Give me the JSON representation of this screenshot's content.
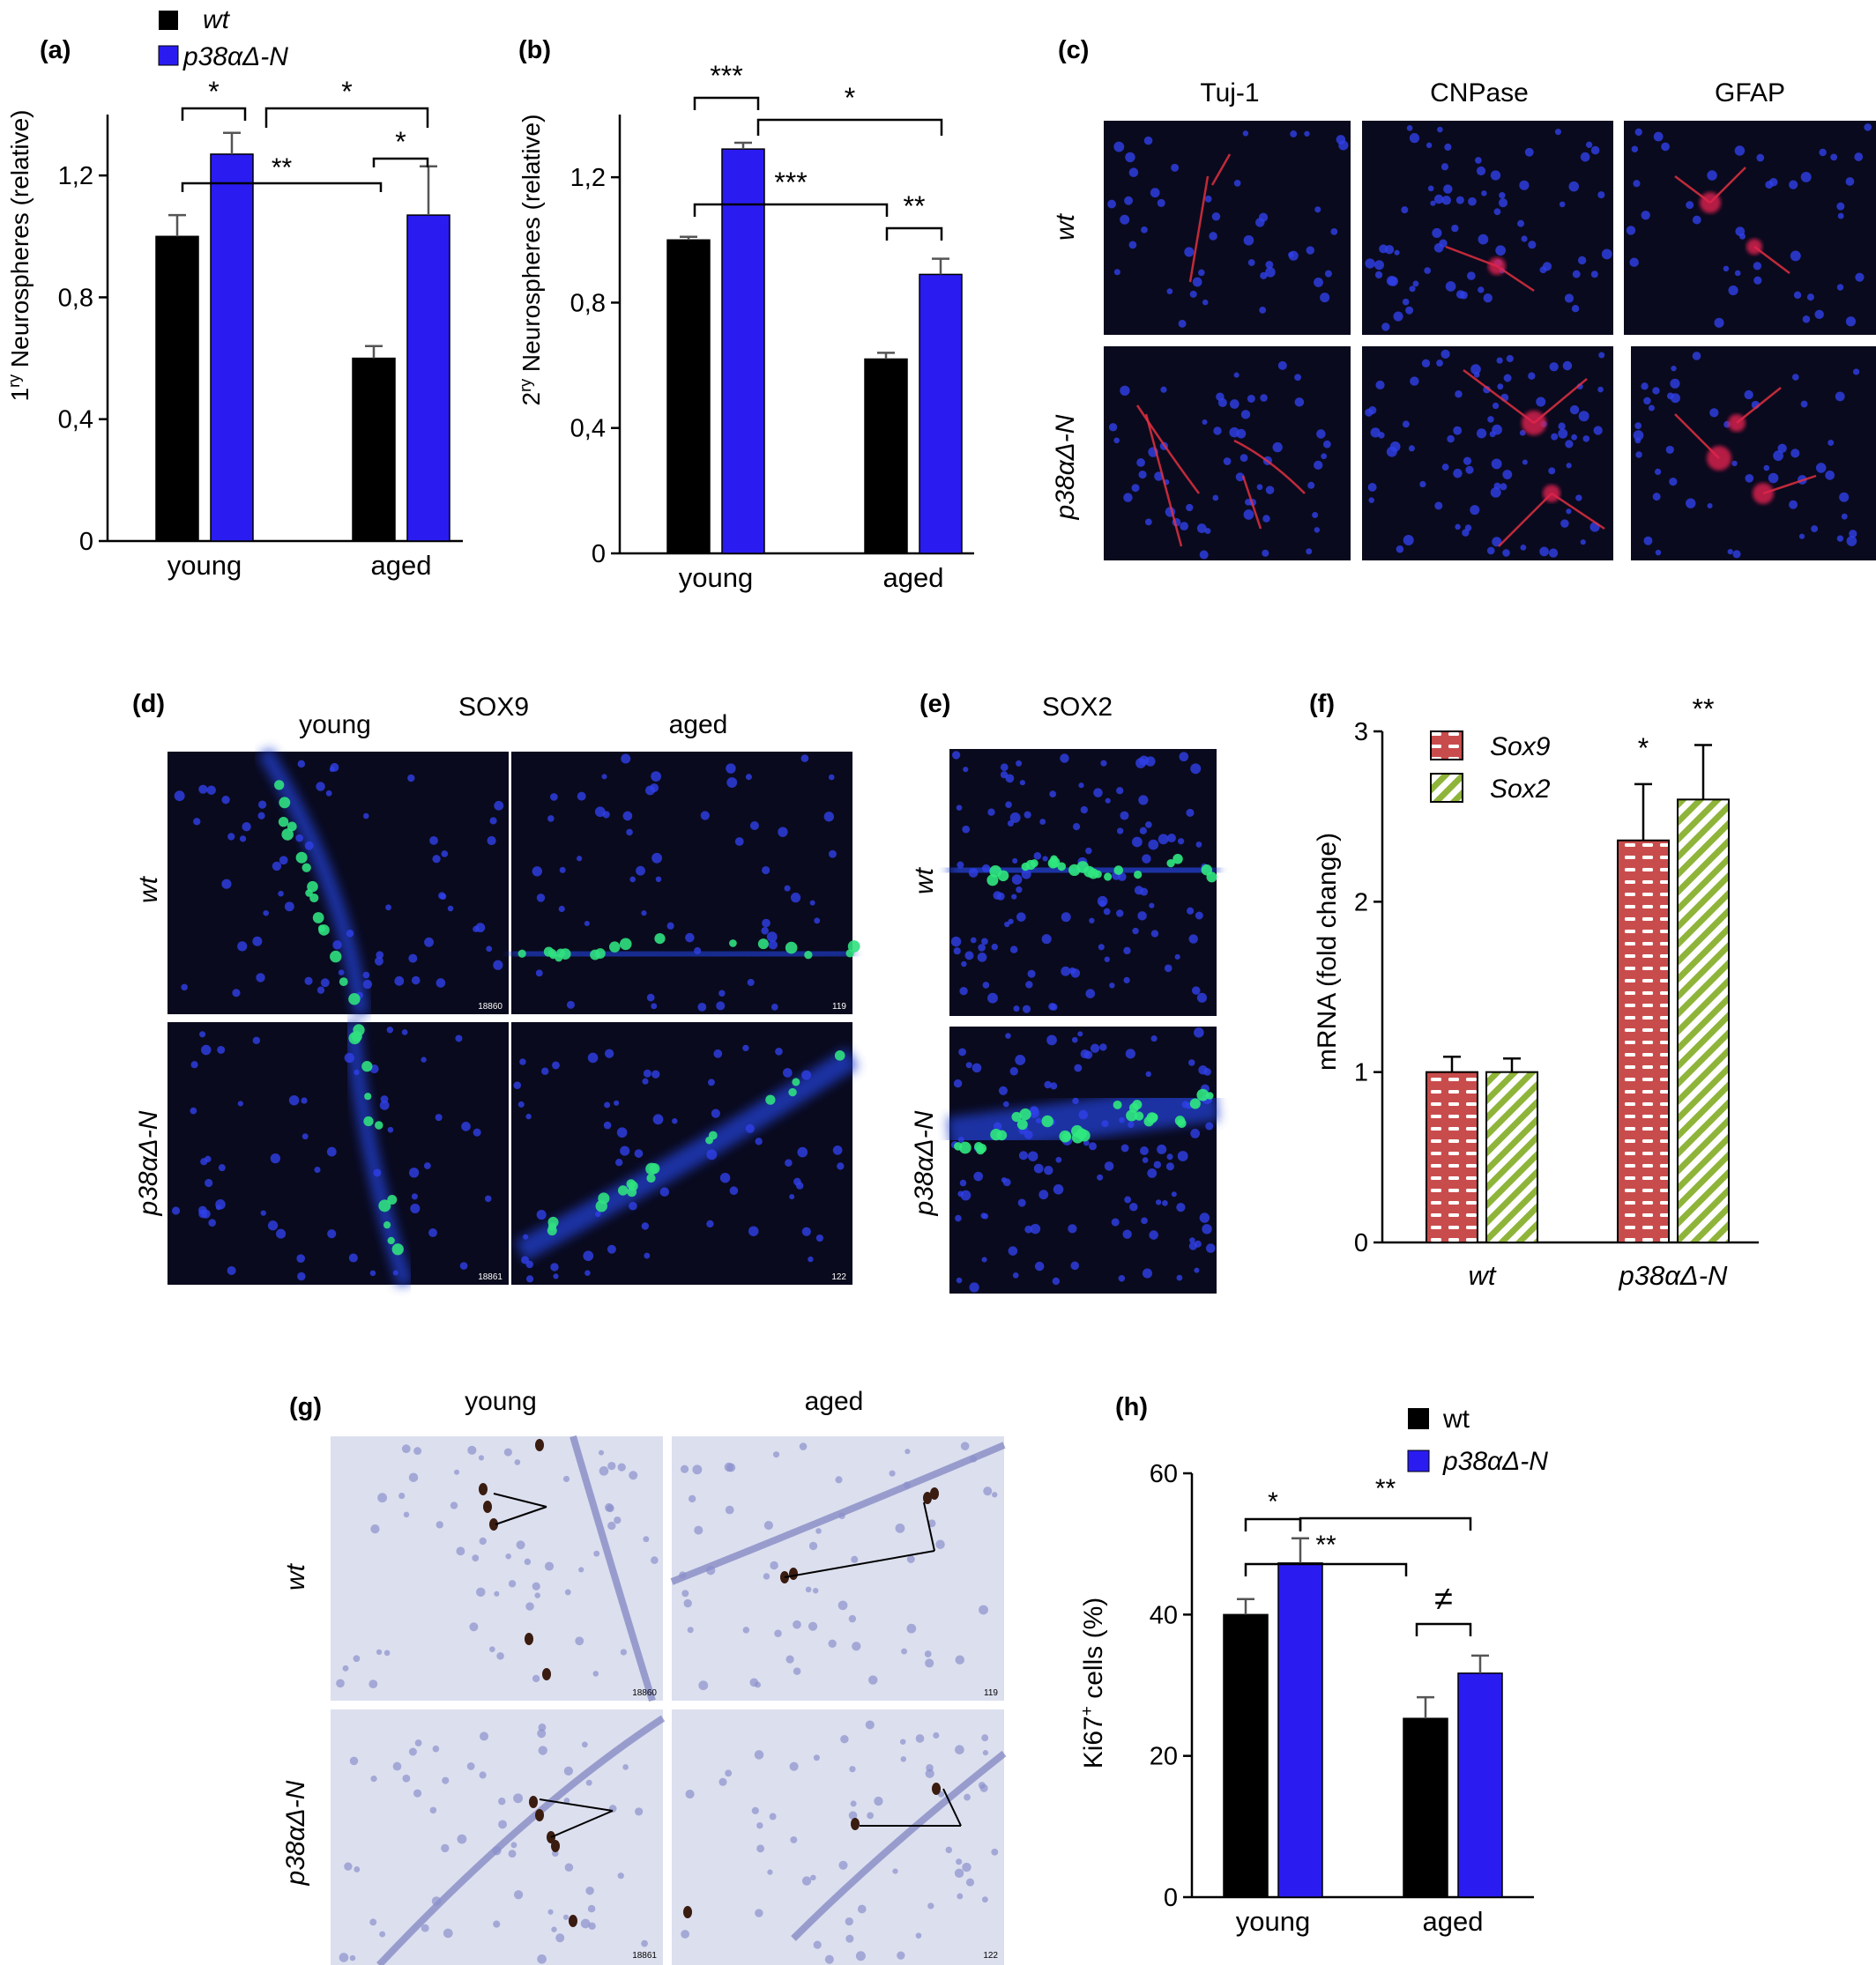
{
  "colors": {
    "wt": "#000000",
    "mut": "#2a1cf0",
    "sox9": "#c94c4c",
    "sox2": "#8fb43a",
    "micro_bg": "#0a0a1e",
    "he_bg": "#dcdfee"
  },
  "legend": {
    "wt": "wt",
    "mut": "p38αΔ-N",
    "wt_h": "wt"
  },
  "genotypes": {
    "wt": "wt",
    "mut": "p38αΔ-N"
  },
  "ages": {
    "young": "young",
    "aged": "aged"
  },
  "panel_a": {
    "label": "(a)",
    "ylabel_pre": "1",
    "ylabel_sup": "ry",
    "ylabel_post": " Neurospheres (relative)",
    "chart_data": {
      "type": "bar",
      "categories": [
        "young",
        "aged"
      ],
      "series": [
        {
          "name": "wt",
          "values": [
            1.0,
            0.6
          ],
          "errors": [
            0.07,
            0.04
          ]
        },
        {
          "name": "p38αΔ-N",
          "values": [
            1.27,
            1.07
          ],
          "errors": [
            0.07,
            0.16
          ]
        }
      ],
      "ylim": [
        0,
        1.4
      ],
      "yticks": [
        0,
        0.4,
        0.8,
        1.2
      ],
      "ytick_labels": [
        "0",
        "0,4",
        "0,8",
        "1,2"
      ],
      "significance": [
        {
          "text": "*",
          "between": "young wt – young p38αΔ-N"
        },
        {
          "text": "*",
          "between": "young p38αΔ-N – aged p38αΔ-N"
        },
        {
          "text": "**",
          "between": "young wt – aged wt"
        },
        {
          "text": "*",
          "between": "aged wt – aged p38αΔ-N"
        }
      ]
    }
  },
  "panel_b": {
    "label": "(b)",
    "ylabel_pre": "2",
    "ylabel_sup": "ry",
    "ylabel_post": " Neurospheres (relative)",
    "chart_data": {
      "type": "bar",
      "categories": [
        "young",
        "aged"
      ],
      "series": [
        {
          "name": "wt",
          "values": [
            1.0,
            0.62
          ],
          "errors": [
            0.01,
            0.02
          ]
        },
        {
          "name": "p38αΔ-N",
          "values": [
            1.29,
            0.89
          ],
          "errors": [
            0.02,
            0.05
          ]
        }
      ],
      "ylim": [
        0,
        1.4
      ],
      "yticks": [
        0,
        0.4,
        0.8,
        1.2
      ],
      "ytick_labels": [
        "0",
        "0,4",
        "0,8",
        "1,2"
      ],
      "significance": [
        {
          "text": "***",
          "between": "young wt – young p38αΔ-N"
        },
        {
          "text": "*",
          "between": "young p38αΔ-N – aged p38αΔ-N"
        },
        {
          "text": "***",
          "between": "young wt – aged wt"
        },
        {
          "text": "**",
          "between": "aged wt – aged p38αΔ-N"
        }
      ]
    }
  },
  "panel_c": {
    "label": "(c)",
    "columns": [
      "Tuj-1",
      "CNPase",
      "GFAP"
    ]
  },
  "panel_d": {
    "label": "(d)",
    "title": "SOX9",
    "ids": [
      "18860",
      "119",
      "18861",
      "122"
    ]
  },
  "panel_e": {
    "label": "(e)",
    "title": "SOX2"
  },
  "panel_f": {
    "label": "(f)",
    "ylabel": "mRNA (fold change)",
    "chart_data": {
      "type": "bar",
      "categories": [
        "wt",
        "p38αΔ-N"
      ],
      "series": [
        {
          "name": "Sox9",
          "values": [
            1.0,
            2.36
          ],
          "errors": [
            0.09,
            0.33
          ]
        },
        {
          "name": "Sox2",
          "values": [
            1.0,
            2.6
          ],
          "errors": [
            0.08,
            0.32
          ]
        }
      ],
      "ylim": [
        0,
        3
      ],
      "yticks": [
        0,
        1,
        2,
        3
      ],
      "ytick_labels": [
        "0",
        "1",
        "2",
        "3"
      ],
      "significance": [
        {
          "text": "*",
          "between": "p38αΔ-N Sox9 vs wt"
        },
        {
          "text": "**",
          "between": "p38αΔ-N Sox2 vs wt"
        }
      ]
    }
  },
  "panel_g": {
    "label": "(g)",
    "ids": [
      "18860",
      "119",
      "18861",
      "122"
    ]
  },
  "panel_h": {
    "label": "(h)",
    "ylabel_pre": "Ki67",
    "ylabel_sup": "+",
    "ylabel_post": " cells (%)",
    "chart_data": {
      "type": "bar",
      "categories": [
        "young",
        "aged"
      ],
      "series": [
        {
          "name": "wt",
          "values": [
            40,
            25.3
          ],
          "errors": [
            2.2,
            3.0
          ]
        },
        {
          "name": "p38αΔ-N",
          "values": [
            47.3,
            31.7
          ],
          "errors": [
            3.5,
            2.5
          ]
        }
      ],
      "ylim": [
        0,
        60
      ],
      "yticks": [
        0,
        20,
        40,
        60
      ],
      "ytick_labels": [
        "0",
        "20",
        "40",
        "60"
      ],
      "significance": [
        {
          "text": "*",
          "between": "young wt – young p38αΔ-N"
        },
        {
          "text": "**",
          "between": "young p38αΔ-N – aged p38αΔ-N"
        },
        {
          "text": "**",
          "between": "young wt – aged wt"
        },
        {
          "text": "≠",
          "between": "aged wt – aged p38αΔ-N"
        }
      ]
    }
  }
}
